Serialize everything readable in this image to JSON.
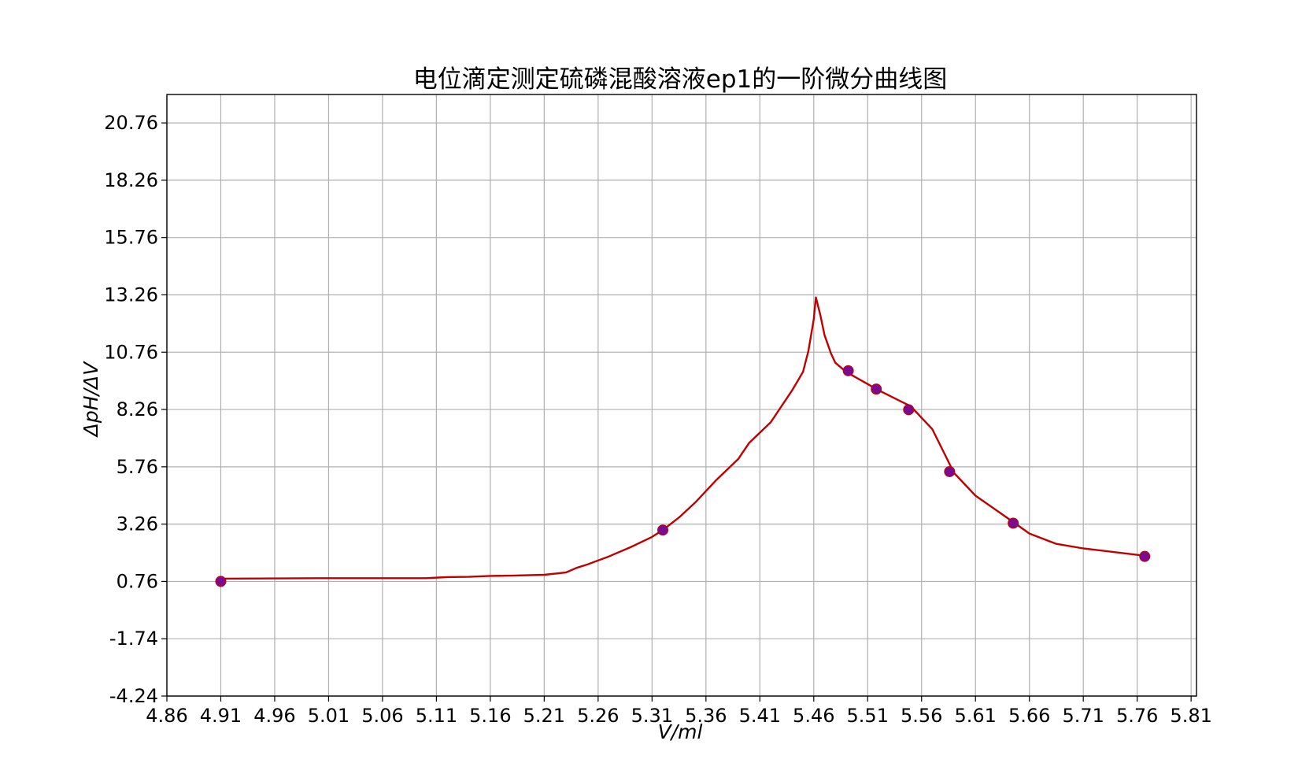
{
  "chart_data": {
    "type": "line",
    "title": "电位滴定测定硫磷混酸溶液ep1的一阶微分曲线图",
    "xlabel": "V/ml",
    "ylabel": "ΔpH/ΔV",
    "xlim": [
      4.86,
      5.815
    ],
    "ylim": [
      -4.24,
      22.0
    ],
    "x_ticks": [
      "4.86",
      "4.91",
      "4.96",
      "5.01",
      "5.06",
      "5.11",
      "5.16",
      "5.21",
      "5.26",
      "5.31",
      "5.36",
      "5.41",
      "5.46",
      "5.51",
      "5.56",
      "5.61",
      "5.66",
      "5.71",
      "5.76",
      "5.81"
    ],
    "y_ticks": [
      "-4.24",
      "-1.74",
      "0.76",
      "3.26",
      "5.76",
      "8.26",
      "10.76",
      "13.26",
      "15.76",
      "18.26",
      "20.76"
    ],
    "grid": true,
    "line_color": "#c00000",
    "marker_color": "#7b0a8e",
    "series": [
      {
        "type": "line",
        "x": [
          4.91,
          5.0,
          5.1,
          5.112,
          5.12,
          5.14,
          5.16,
          5.18,
          5.21,
          5.23,
          5.24,
          5.25,
          5.27,
          5.29,
          5.31,
          5.32,
          5.335,
          5.35,
          5.37,
          5.39,
          5.4,
          5.42,
          5.43,
          5.44,
          5.45,
          5.455,
          5.46,
          5.462,
          5.466,
          5.47,
          5.476,
          5.48,
          5.49,
          5.52,
          5.55,
          5.57,
          5.59,
          5.61,
          5.645,
          5.66,
          5.685,
          5.71,
          5.767
        ],
        "y": [
          0.88,
          0.9,
          0.9,
          0.93,
          0.95,
          0.96,
          1.0,
          1.01,
          1.05,
          1.15,
          1.35,
          1.5,
          1.85,
          2.25,
          2.7,
          3.0,
          3.55,
          4.2,
          5.2,
          6.1,
          6.8,
          7.7,
          8.4,
          9.1,
          9.9,
          10.8,
          12.2,
          13.15,
          12.4,
          11.5,
          10.7,
          10.3,
          9.9,
          9.1,
          8.4,
          7.4,
          5.5,
          4.5,
          3.35,
          2.85,
          2.4,
          2.2,
          1.88
        ]
      },
      {
        "type": "scatter",
        "x": [
          4.91,
          5.32,
          5.492,
          5.518,
          5.548,
          5.586,
          5.645,
          5.767
        ],
        "y": [
          0.76,
          3.0,
          9.95,
          9.15,
          8.25,
          5.55,
          3.3,
          1.85
        ]
      }
    ]
  }
}
